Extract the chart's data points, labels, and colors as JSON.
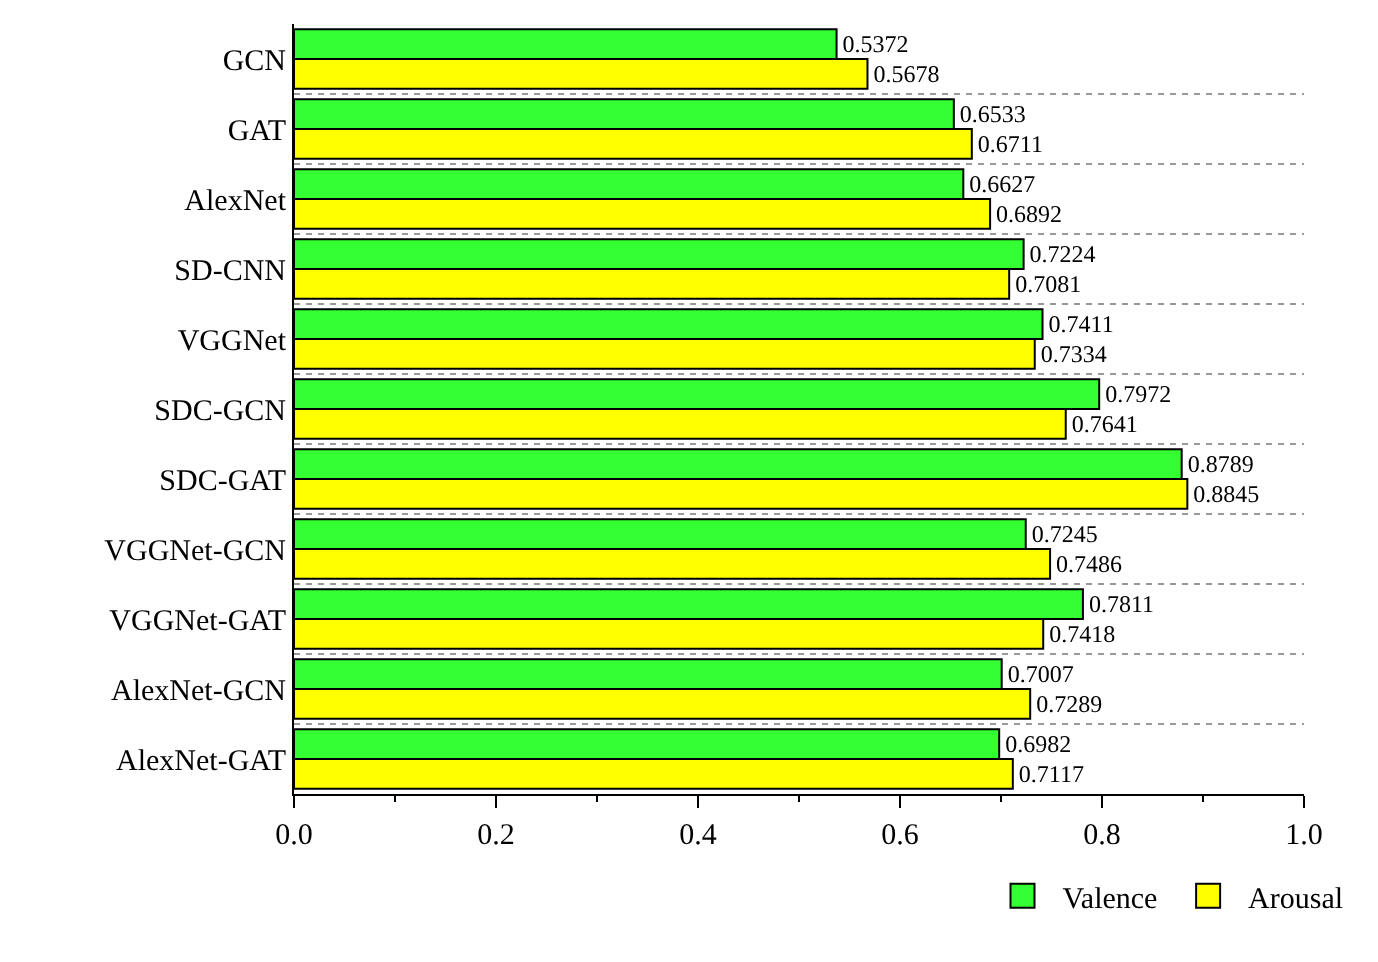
{
  "chart_data": {
    "type": "bar",
    "orientation": "horizontal",
    "categories": [
      "GCN",
      "GAT",
      "AlexNet",
      "SD-CNN",
      "VGGNet",
      "SDC-GCN",
      "SDC-GAT",
      "VGGNet-GCN",
      "VGGNet-GAT",
      "AlexNet-GCN",
      "AlexNet-GAT"
    ],
    "series": [
      {
        "name": "Valence",
        "color": "#33ff33",
        "values": [
          0.5372,
          0.6533,
          0.6627,
          0.7224,
          0.7411,
          0.7972,
          0.8789,
          0.7245,
          0.7811,
          0.7007,
          0.6982
        ]
      },
      {
        "name": "Arousal",
        "color": "#ffff00",
        "values": [
          0.5678,
          0.6711,
          0.6892,
          0.7081,
          0.7334,
          0.7641,
          0.8845,
          0.7486,
          0.7418,
          0.7289,
          0.7117
        ]
      }
    ],
    "xlim": [
      0.0,
      1.0
    ],
    "xticks": [
      {
        "value": 0.0,
        "label": "0.0"
      },
      {
        "value": 0.2,
        "label": "0.2"
      },
      {
        "value": 0.4,
        "label": "0.4"
      },
      {
        "value": 0.6,
        "label": "0.6"
      },
      {
        "value": 0.8,
        "label": "0.8"
      },
      {
        "value": 1.0,
        "label": "1.0"
      }
    ],
    "data_labels": true,
    "grid": "y",
    "legend": "bottom right"
  }
}
